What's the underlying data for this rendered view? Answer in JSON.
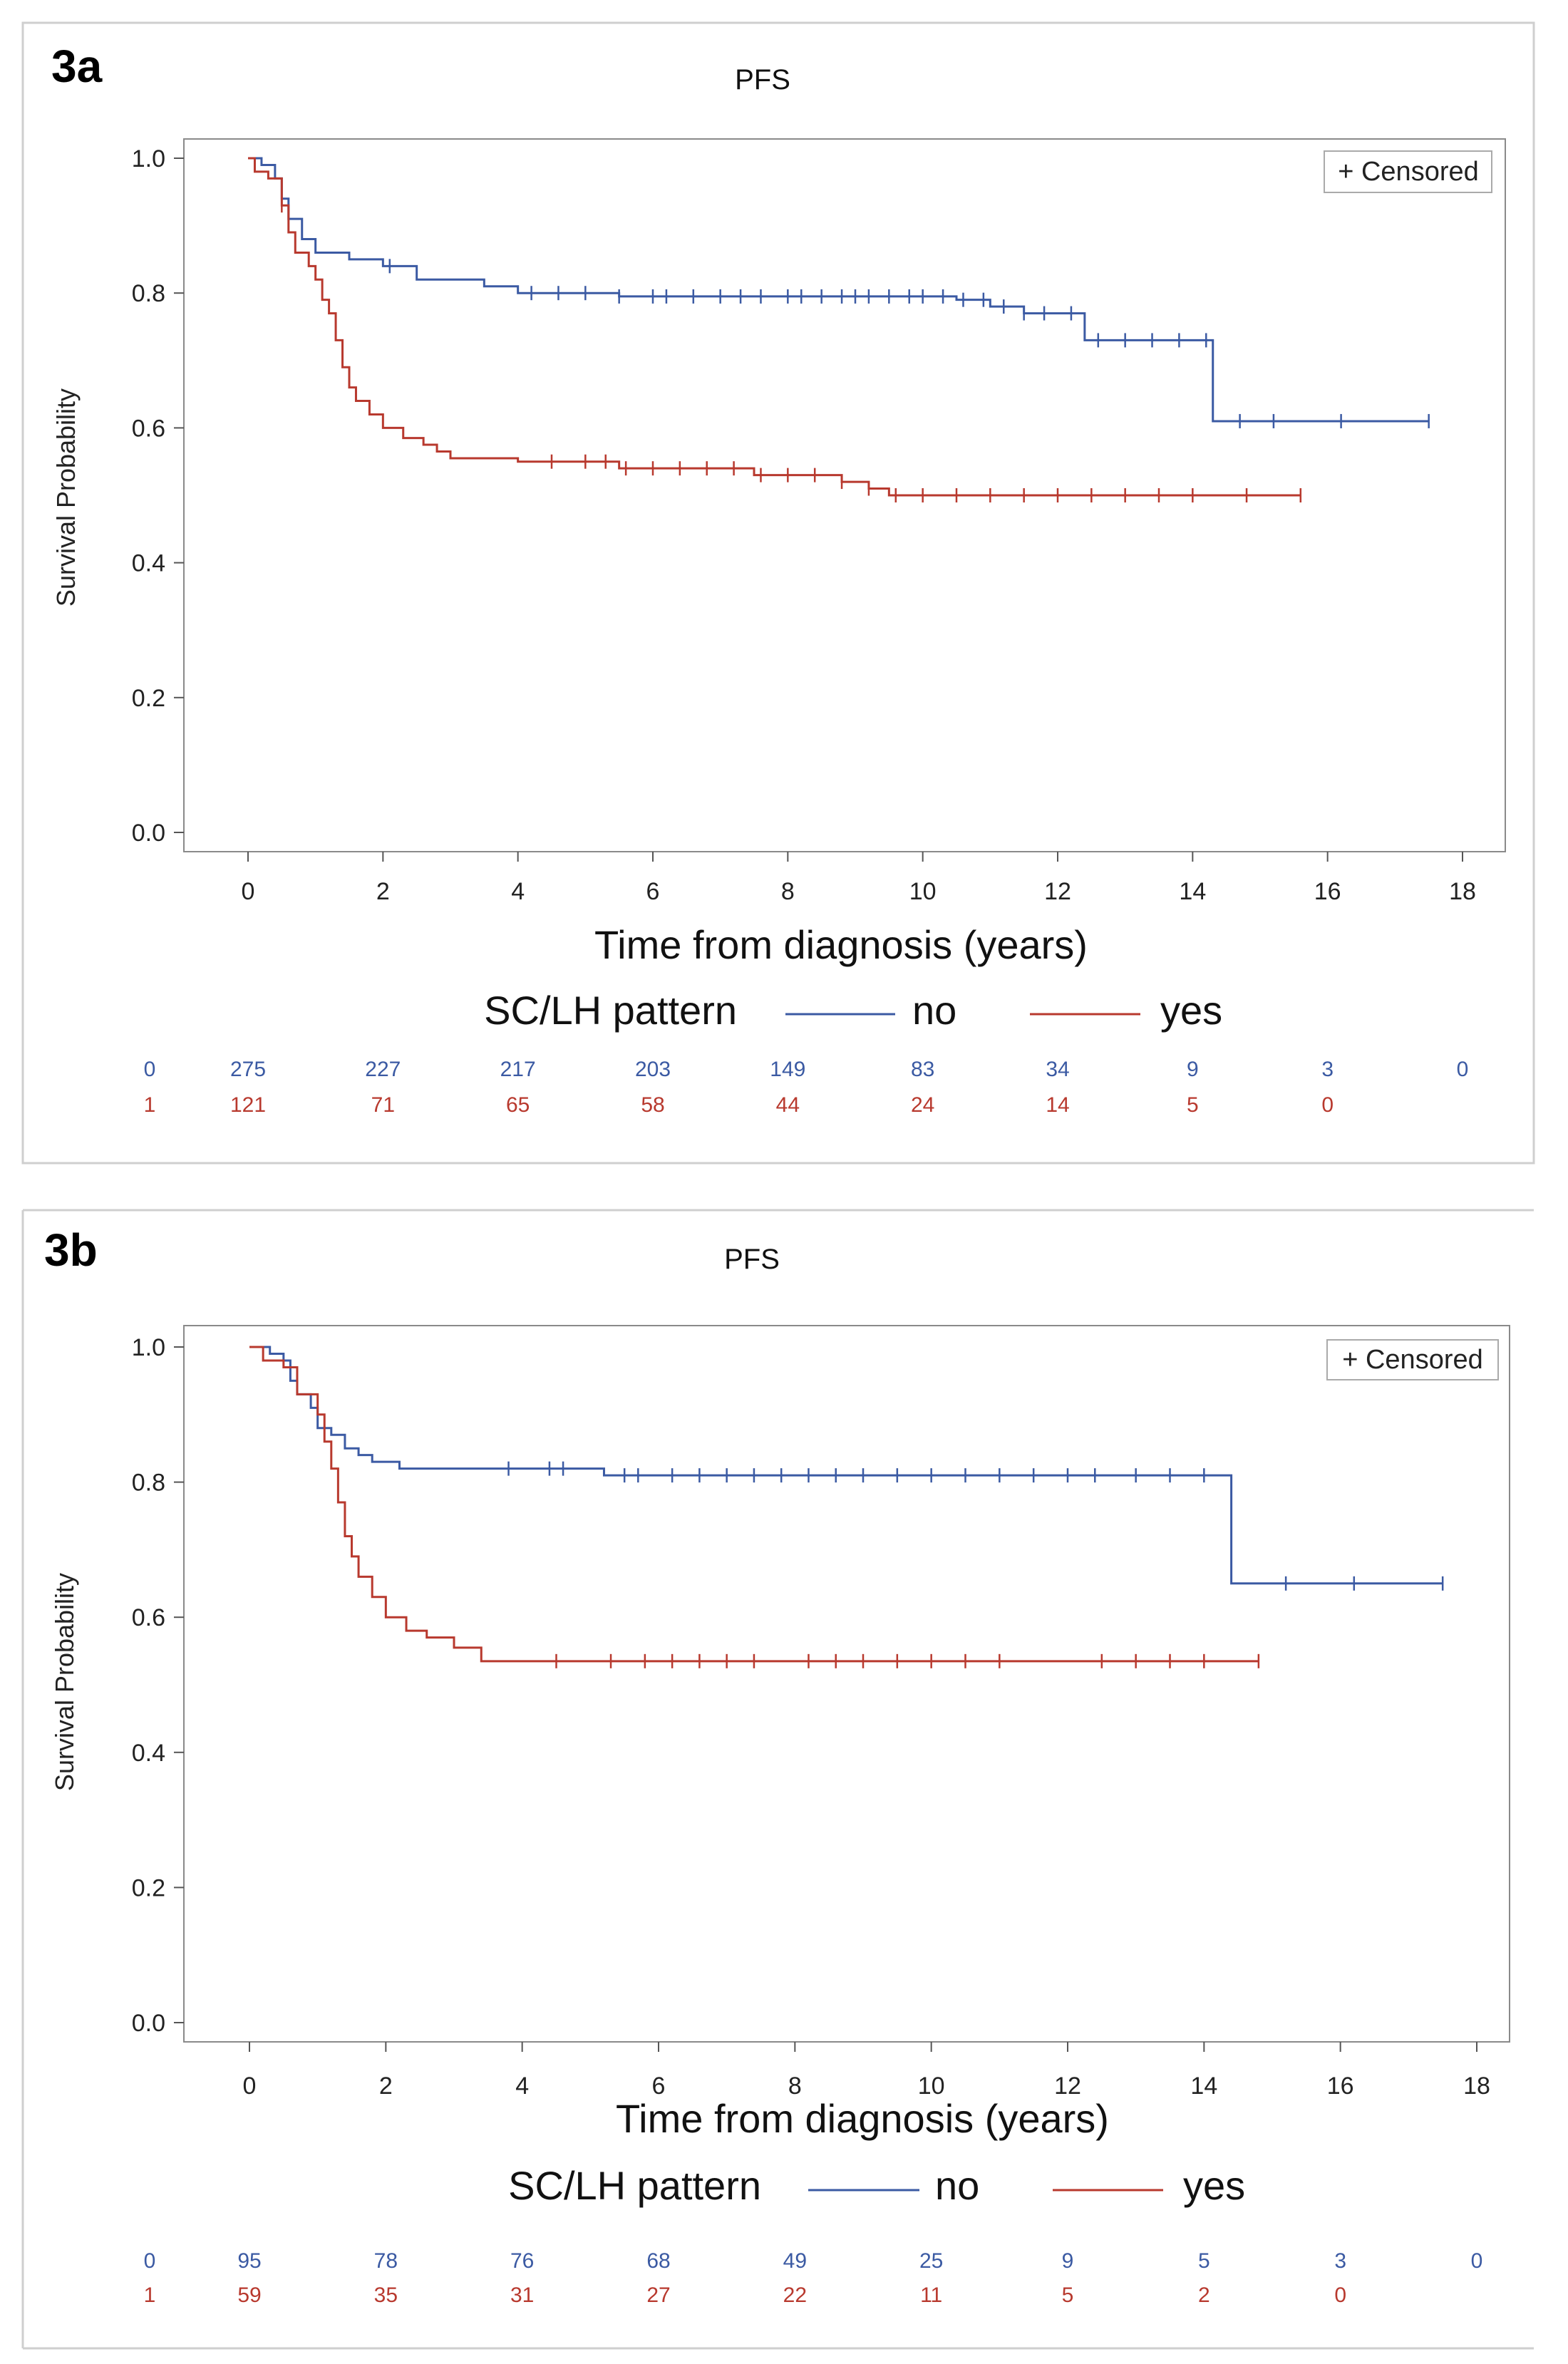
{
  "chart_data": [
    {
      "type": "line",
      "subtype": "kaplan-meier",
      "panel_label": "3a",
      "title": "PFS",
      "xlabel": "Time from diagnosis (years)",
      "ylabel": "Survival Probability",
      "xlim": [
        0,
        18
      ],
      "ylim": [
        0,
        1
      ],
      "xticks": [
        "0",
        "2",
        "4",
        "6",
        "8",
        "10",
        "12",
        "14",
        "16",
        "18"
      ],
      "yticks": [
        "0.0",
        "0.2",
        "0.4",
        "0.6",
        "0.8",
        "1.0"
      ],
      "censored_legend": "+ Censored",
      "legend_title": "SC/LH pattern",
      "series": [
        {
          "name": "no",
          "color": "#3b5aa3",
          "steps": [
            [
              0,
              1.0
            ],
            [
              0.2,
              0.99
            ],
            [
              0.4,
              0.97
            ],
            [
              0.5,
              0.94
            ],
            [
              0.6,
              0.91
            ],
            [
              0.8,
              0.88
            ],
            [
              1.0,
              0.86
            ],
            [
              1.5,
              0.85
            ],
            [
              2.0,
              0.84
            ],
            [
              2.5,
              0.82
            ],
            [
              3.5,
              0.81
            ],
            [
              4.0,
              0.8
            ],
            [
              5.5,
              0.795
            ],
            [
              10.5,
              0.79
            ],
            [
              11.0,
              0.78
            ],
            [
              11.5,
              0.77
            ],
            [
              12.4,
              0.73
            ],
            [
              14.3,
              0.61
            ],
            [
              17.5,
              0.61
            ]
          ],
          "censor_times": [
            2.1,
            4.2,
            4.6,
            5.0,
            5.5,
            6.0,
            6.2,
            6.6,
            7.0,
            7.3,
            7.6,
            8.0,
            8.2,
            8.5,
            8.8,
            9.0,
            9.2,
            9.5,
            9.8,
            10.0,
            10.3,
            10.6,
            10.9,
            11.2,
            11.5,
            11.8,
            12.2,
            12.6,
            13.0,
            13.4,
            13.8,
            14.2,
            14.7,
            15.2,
            16.2,
            17.5
          ]
        },
        {
          "name": "yes",
          "color": "#b8392e",
          "steps": [
            [
              0,
              1.0
            ],
            [
              0.1,
              0.98
            ],
            [
              0.3,
              0.97
            ],
            [
              0.5,
              0.93
            ],
            [
              0.6,
              0.89
            ],
            [
              0.7,
              0.86
            ],
            [
              0.9,
              0.84
            ],
            [
              1.0,
              0.82
            ],
            [
              1.1,
              0.79
            ],
            [
              1.2,
              0.77
            ],
            [
              1.3,
              0.73
            ],
            [
              1.4,
              0.69
            ],
            [
              1.5,
              0.66
            ],
            [
              1.6,
              0.64
            ],
            [
              1.8,
              0.62
            ],
            [
              2.0,
              0.6
            ],
            [
              2.3,
              0.585
            ],
            [
              2.6,
              0.575
            ],
            [
              2.8,
              0.565
            ],
            [
              3.0,
              0.555
            ],
            [
              4.0,
              0.55
            ],
            [
              5.5,
              0.54
            ],
            [
              7.5,
              0.53
            ],
            [
              8.8,
              0.52
            ],
            [
              9.2,
              0.51
            ],
            [
              9.5,
              0.5
            ],
            [
              15.6,
              0.5
            ]
          ],
          "censor_times": [
            0.5,
            4.5,
            5.0,
            5.3,
            5.6,
            6.0,
            6.4,
            6.8,
            7.2,
            7.6,
            8.0,
            8.4,
            8.8,
            9.2,
            9.6,
            10.0,
            10.5,
            11.0,
            11.5,
            12.0,
            12.5,
            13.0,
            13.5,
            14.0,
            14.8,
            15.6
          ]
        }
      ],
      "risk_table": {
        "x": [
          0,
          2,
          4,
          6,
          8,
          10,
          12,
          14,
          16,
          18
        ],
        "rows": [
          {
            "label": "0",
            "values": [
              "275",
              "227",
              "217",
              "203",
              "149",
              "83",
              "34",
              "9",
              "3",
              "0"
            ]
          },
          {
            "label": "1",
            "values": [
              "121",
              "71",
              "65",
              "58",
              "44",
              "24",
              "14",
              "5",
              "0"
            ]
          }
        ]
      }
    },
    {
      "type": "line",
      "subtype": "kaplan-meier",
      "panel_label": "3b",
      "title": "PFS",
      "xlabel": "Time from diagnosis (years)",
      "ylabel": "Survival Probability",
      "xlim": [
        0,
        18
      ],
      "ylim": [
        0,
        1
      ],
      "xticks": [
        "0",
        "2",
        "4",
        "6",
        "8",
        "10",
        "12",
        "14",
        "16",
        "18"
      ],
      "yticks": [
        "0.0",
        "0.2",
        "0.4",
        "0.6",
        "0.8",
        "1.0"
      ],
      "censored_legend": "+ Censored",
      "legend_title": "SC/LH pattern",
      "series": [
        {
          "name": "no",
          "color": "#3b5aa3",
          "steps": [
            [
              0,
              1.0
            ],
            [
              0.3,
              0.99
            ],
            [
              0.5,
              0.98
            ],
            [
              0.6,
              0.95
            ],
            [
              0.7,
              0.93
            ],
            [
              0.9,
              0.91
            ],
            [
              1.0,
              0.88
            ],
            [
              1.2,
              0.87
            ],
            [
              1.4,
              0.85
            ],
            [
              1.6,
              0.84
            ],
            [
              1.8,
              0.83
            ],
            [
              2.2,
              0.82
            ],
            [
              5.2,
              0.81
            ],
            [
              14.4,
              0.65
            ],
            [
              17.5,
              0.65
            ]
          ],
          "censor_times": [
            3.8,
            4.4,
            4.6,
            5.5,
            5.7,
            6.2,
            6.6,
            7.0,
            7.4,
            7.8,
            8.2,
            8.6,
            9.0,
            9.5,
            10.0,
            10.5,
            11.0,
            11.5,
            12.0,
            12.4,
            13.0,
            13.5,
            14.0,
            15.2,
            16.2,
            17.5
          ]
        },
        {
          "name": "yes",
          "color": "#b8392e",
          "steps": [
            [
              0,
              1.0
            ],
            [
              0.2,
              0.98
            ],
            [
              0.5,
              0.97
            ],
            [
              0.7,
              0.93
            ],
            [
              1.0,
              0.9
            ],
            [
              1.1,
              0.86
            ],
            [
              1.2,
              0.82
            ],
            [
              1.3,
              0.77
            ],
            [
              1.4,
              0.72
            ],
            [
              1.5,
              0.69
            ],
            [
              1.6,
              0.66
            ],
            [
              1.8,
              0.63
            ],
            [
              2.0,
              0.6
            ],
            [
              2.3,
              0.58
            ],
            [
              2.6,
              0.57
            ],
            [
              3.0,
              0.555
            ],
            [
              3.4,
              0.535
            ],
            [
              14.8,
              0.535
            ]
          ],
          "censor_times": [
            4.5,
            5.3,
            5.8,
            6.2,
            6.6,
            7.0,
            7.4,
            8.2,
            8.6,
            9.0,
            9.5,
            10.0,
            10.5,
            11.0,
            12.5,
            13.0,
            13.5,
            14.0,
            14.8
          ]
        }
      ],
      "risk_table": {
        "x": [
          0,
          2,
          4,
          6,
          8,
          10,
          12,
          14,
          16,
          18
        ],
        "rows": [
          {
            "label": "0",
            "values": [
              "95",
              "78",
              "76",
              "68",
              "49",
              "25",
              "9",
              "5",
              "3",
              "0"
            ]
          },
          {
            "label": "1",
            "values": [
              "59",
              "35",
              "31",
              "27",
              "22",
              "11",
              "5",
              "2",
              "0"
            ]
          }
        ]
      }
    }
  ]
}
